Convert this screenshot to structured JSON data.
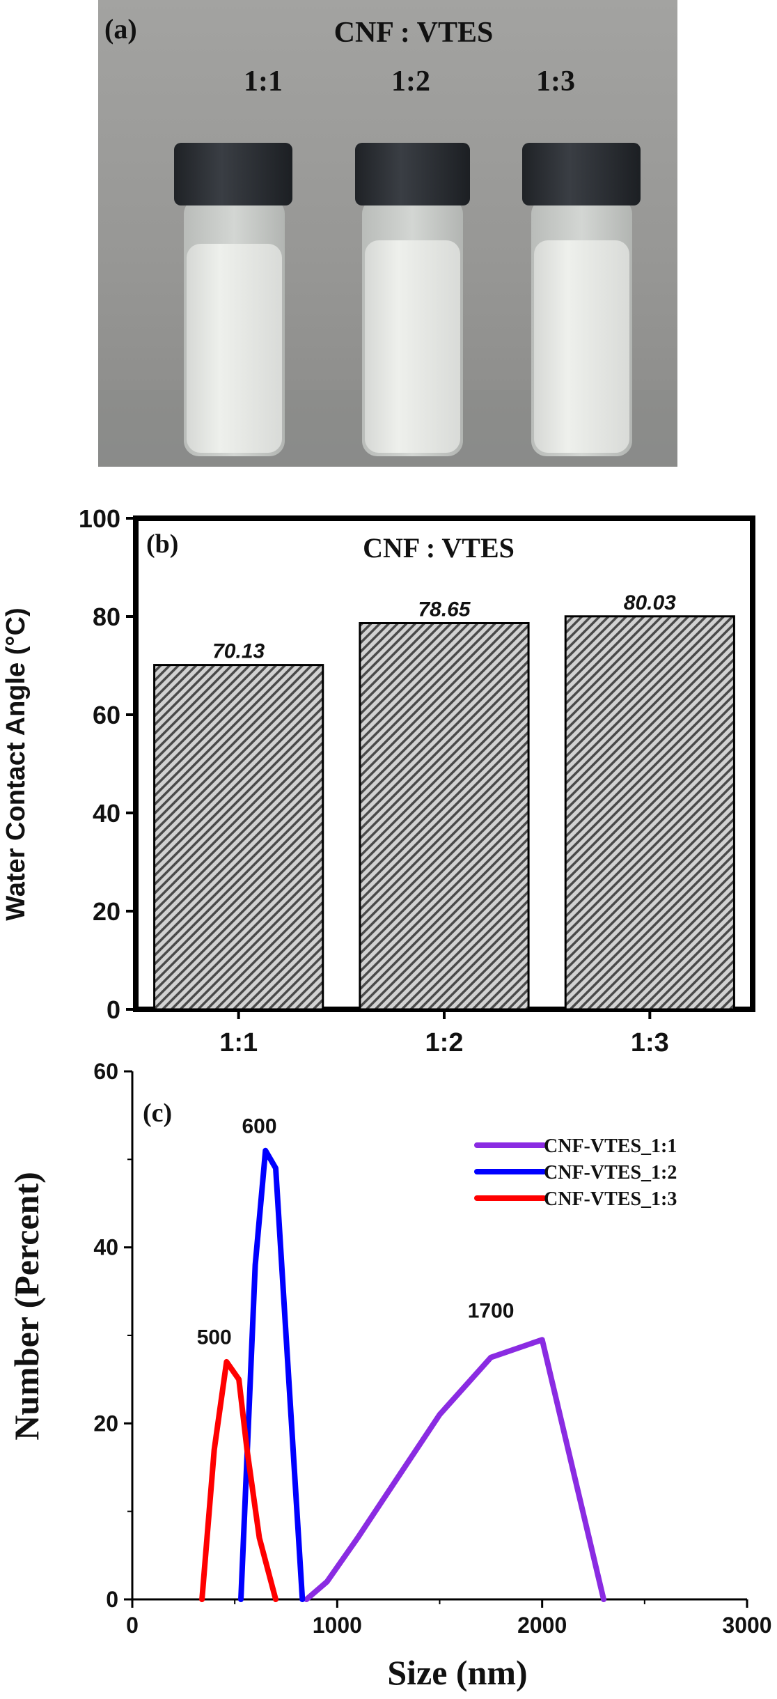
{
  "panel_a": {
    "label": "(a)",
    "title": "CNF : VTES",
    "samples": [
      "1:1",
      "1:2",
      "1:3"
    ],
    "colors": {
      "background": "#9d9d9d",
      "cap": "#2a2d31",
      "liquid": "#e4e6e3"
    }
  },
  "chart_data": [
    {
      "type": "bar",
      "panel_label": "(b)",
      "title": "CNF : VTES",
      "categories": [
        "1:1",
        "1:2",
        "1:3"
      ],
      "values": [
        70.13,
        78.65,
        80.03
      ],
      "value_labels": [
        "70.13",
        "78.65",
        "80.03"
      ],
      "xlabel": "",
      "ylabel": "Water Contact Angle (°C)",
      "ylim": [
        0,
        100
      ],
      "yticks": [
        0,
        20,
        40,
        60,
        80,
        100
      ],
      "bar_fill": "hatched gray",
      "grid": false
    },
    {
      "type": "line",
      "panel_label": "(c)",
      "xlabel": "Size (nm)",
      "ylabel": "Number (Percent)",
      "xlim": [
        0,
        3000
      ],
      "ylim": [
        0,
        60
      ],
      "xticks": [
        0,
        1000,
        2000,
        3000
      ],
      "yticks": [
        0,
        20,
        40,
        60
      ],
      "legend_position": "top-right",
      "series": [
        {
          "name": "CNF-VTES_1:1",
          "color": "#8a2be2",
          "x": [
            850,
            950,
            1100,
            1300,
            1500,
            1750,
            2000,
            2300
          ],
          "y": [
            0,
            2,
            7,
            14,
            21,
            27.5,
            29.5,
            0
          ]
        },
        {
          "name": "CNF-VTES_1:2",
          "color": "#0000ff",
          "x": [
            530,
            600,
            650,
            700,
            830
          ],
          "y": [
            0,
            38,
            51,
            49,
            0
          ]
        },
        {
          "name": "CNF-VTES_1:3",
          "color": "#ff0000",
          "x": [
            340,
            400,
            460,
            520,
            560,
            620,
            700
          ],
          "y": [
            0,
            17,
            27,
            25,
            17,
            7,
            0
          ]
        }
      ],
      "annotations": [
        {
          "text": "600",
          "x": 620,
          "y": 53
        },
        {
          "text": "500",
          "x": 400,
          "y": 29
        },
        {
          "text": "1700",
          "x": 1750,
          "y": 32
        }
      ]
    }
  ]
}
